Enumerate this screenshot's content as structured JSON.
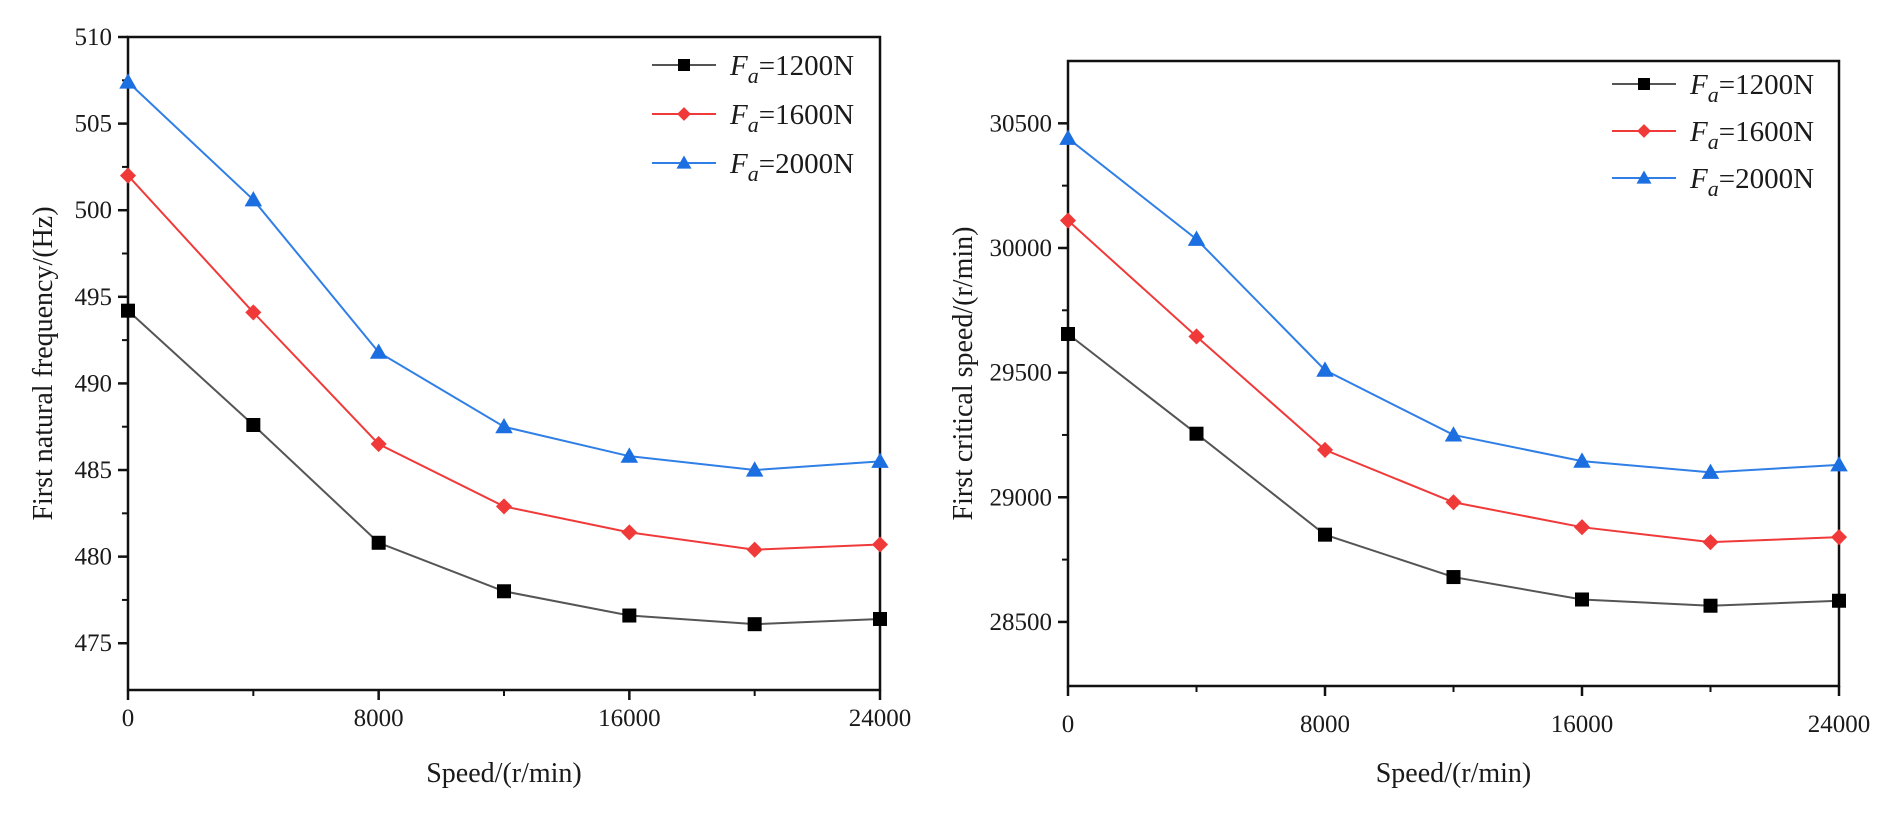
{
  "chart_data": [
    {
      "type": "line",
      "title": "",
      "xlabel": "Speed/(r/min)",
      "ylabel": "First natural frequency/(Hz)",
      "x": [
        0,
        4000,
        8000,
        12000,
        16000,
        20000,
        24000
      ],
      "xlim": [
        0,
        24000
      ],
      "ylim": [
        472.3,
        510
      ],
      "xticks": [
        0,
        8000,
        16000,
        24000
      ],
      "xtick_labels": [
        "0",
        "8000",
        "16000",
        "24000"
      ],
      "xminor": [
        4000,
        12000,
        20000
      ],
      "yticks": [
        475,
        480,
        485,
        490,
        495,
        500,
        505,
        510
      ],
      "ytick_labels": [
        "475",
        "480",
        "485",
        "490",
        "495",
        "500",
        "505",
        "510"
      ],
      "yminor": [
        477.5,
        482.5,
        487.5,
        492.5,
        497.5,
        502.5,
        507.5
      ],
      "grid": false,
      "legend_position": "top-right",
      "series": [
        {
          "name": "Fa=1200N",
          "symbol": "F",
          "subscript": "a",
          "value_text": "=1200N",
          "color": "#000000",
          "line_color": "#555555",
          "marker": "square",
          "values": [
            494.2,
            487.6,
            480.8,
            478.0,
            476.6,
            476.1,
            476.4
          ]
        },
        {
          "name": "Fa=1600N",
          "symbol": "F",
          "subscript": "a",
          "value_text": "=1600N",
          "color": "#f03a3a",
          "line_color": "#f03a3a",
          "marker": "circle",
          "values": [
            502.0,
            494.1,
            486.5,
            482.9,
            481.4,
            480.4,
            480.7
          ]
        },
        {
          "name": "Fa=2000N",
          "symbol": "F",
          "subscript": "a",
          "value_text": "=2000N",
          "color": "#1c6fe0",
          "line_color": "#2f7fe6",
          "marker": "triangle",
          "values": [
            507.4,
            500.6,
            491.8,
            487.5,
            485.8,
            485.0,
            485.5
          ]
        }
      ]
    },
    {
      "type": "line",
      "title": "",
      "xlabel": "Speed/(r/min)",
      "ylabel": "First critical speed/(r/min)",
      "x": [
        0,
        4000,
        8000,
        12000,
        16000,
        20000,
        24000
      ],
      "xlim": [
        0,
        24000
      ],
      "ylim": [
        28243,
        30750
      ],
      "xticks": [
        0,
        8000,
        16000,
        24000
      ],
      "xtick_labels": [
        "0",
        "8000",
        "16000",
        "24000"
      ],
      "xminor": [
        4000,
        12000,
        20000
      ],
      "yticks": [
        28500,
        29000,
        29500,
        30000,
        30500
      ],
      "ytick_labels": [
        "28500",
        "29000",
        "29500",
        "30000",
        "30500"
      ],
      "yminor": [
        28750,
        29250,
        29750,
        30250
      ],
      "grid": false,
      "legend_position": "top-right",
      "series": [
        {
          "name": "Fa=1200N",
          "symbol": "F",
          "subscript": "a",
          "value_text": "=1200N",
          "color": "#000000",
          "line_color": "#555555",
          "marker": "square",
          "values": [
            29655,
            29255,
            28850,
            28680,
            28590,
            28565,
            28585
          ]
        },
        {
          "name": "Fa=1600N",
          "symbol": "F",
          "subscript": "a",
          "value_text": "=1600N",
          "color": "#f03a3a",
          "line_color": "#f03a3a",
          "marker": "circle",
          "values": [
            30110,
            29645,
            29190,
            28980,
            28880,
            28820,
            28840
          ]
        },
        {
          "name": "Fa=2000N",
          "symbol": "F",
          "subscript": "a",
          "value_text": "=2000N",
          "color": "#1c6fe0",
          "line_color": "#2f7fe6",
          "marker": "triangle",
          "values": [
            30440,
            30035,
            29510,
            29250,
            29145,
            29100,
            29130
          ]
        }
      ]
    }
  ]
}
